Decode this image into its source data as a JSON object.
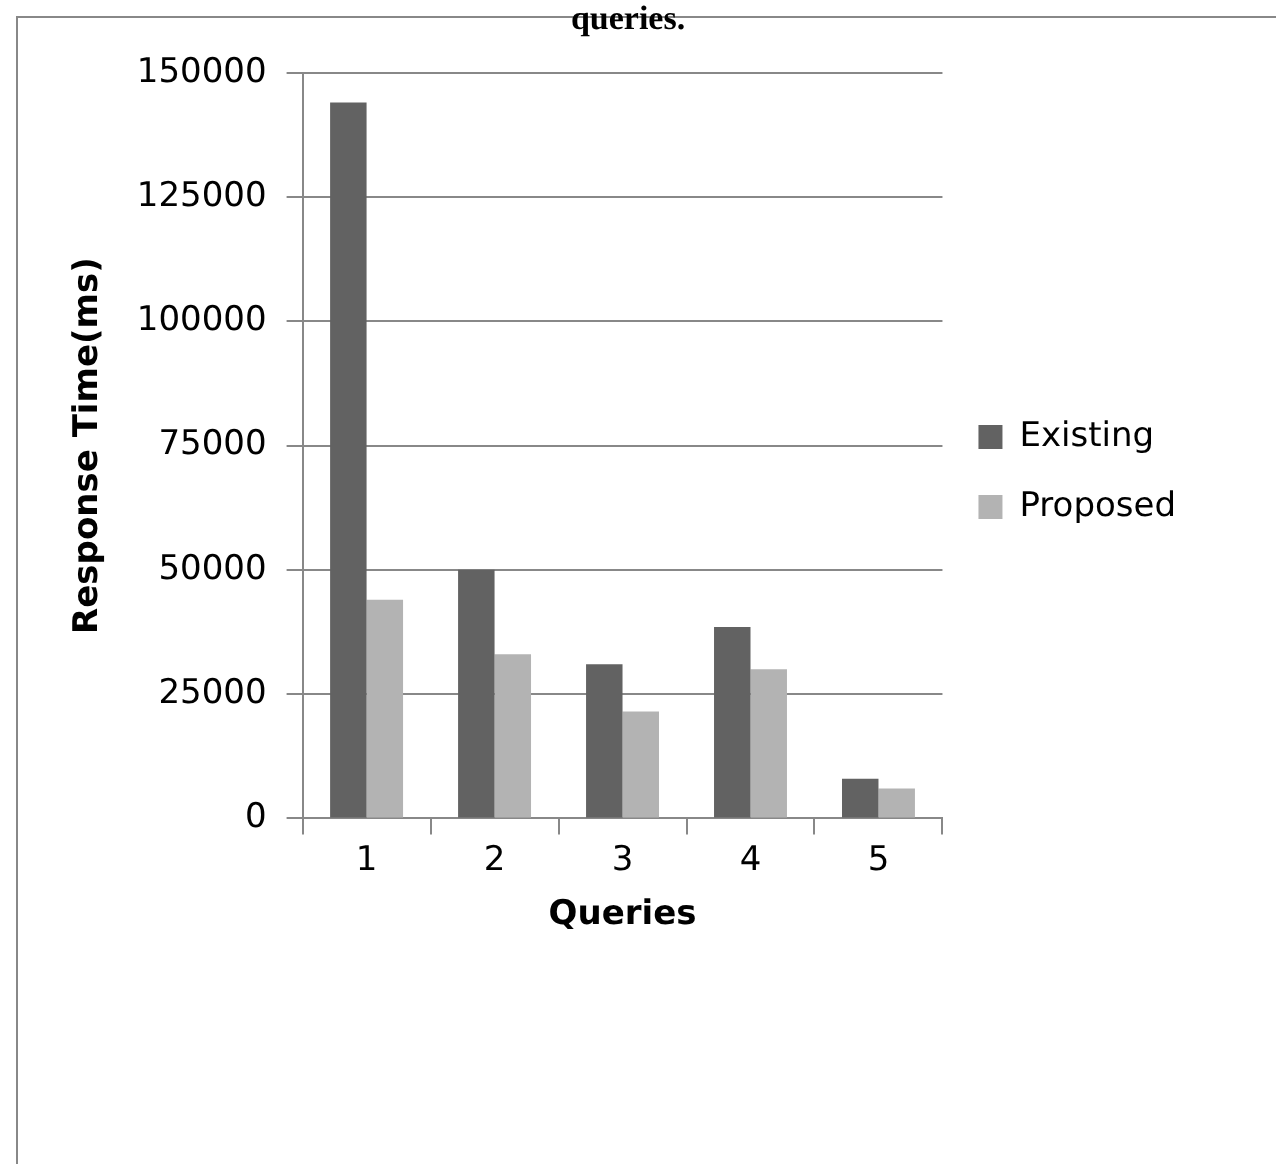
{
  "chart_data": {
    "type": "bar",
    "title": "queries.",
    "xlabel": "Queries",
    "ylabel": "Response Time(ms)",
    "categories": [
      "1",
      "2",
      "3",
      "4",
      "5"
    ],
    "series": [
      {
        "name": "Existing",
        "color": "#626262",
        "values": [
          144000,
          50000,
          31000,
          38500,
          8000
        ]
      },
      {
        "name": "Proposed",
        "color": "#b3b3b3",
        "values": [
          44000,
          33000,
          21500,
          30000,
          6000
        ]
      }
    ],
    "ylim": [
      0,
      150000
    ],
    "yticks": [
      0,
      25000,
      50000,
      75000,
      100000,
      125000,
      150000
    ],
    "grid": "y",
    "legend": "right"
  }
}
